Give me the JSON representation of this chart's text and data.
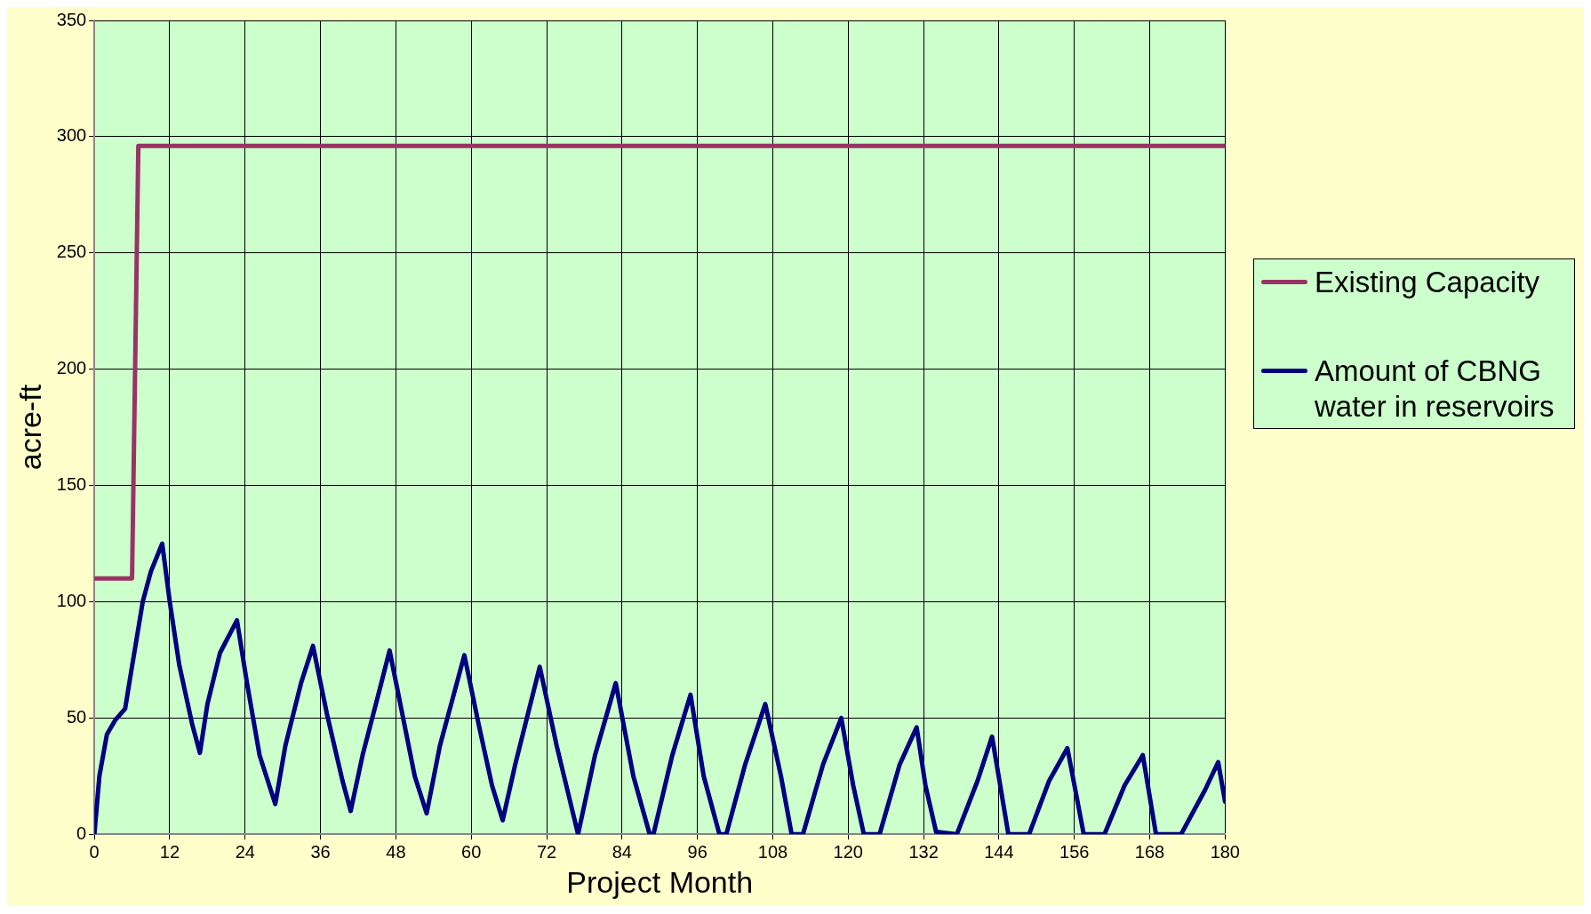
{
  "chart_data": {
    "type": "line",
    "xlabel": "Project Month",
    "ylabel": "acre-ft",
    "xlim": [
      0,
      180
    ],
    "xticks": [
      0,
      12,
      24,
      36,
      48,
      60,
      72,
      84,
      96,
      108,
      120,
      132,
      144,
      156,
      168,
      180
    ],
    "ylim": [
      0,
      350
    ],
    "yticks": [
      0,
      50,
      100,
      150,
      200,
      250,
      300,
      350
    ],
    "grid": true,
    "legend": "right",
    "marker": "none",
    "line_style": "solid",
    "series": [
      {
        "name": "Existing Capacity",
        "color": "#993366",
        "x": [
          0,
          6,
          7,
          180
        ],
        "values": [
          110,
          110,
          296,
          296
        ]
      },
      {
        "name": "Amount of CBNG water in reservoirs",
        "color": "#000080",
        "x": [
          0,
          0.8,
          2,
          3.3,
          4.9,
          5.8,
          6.6,
          7.7,
          9,
          10.8,
          12,
          13.5,
          15.6,
          16.8,
          18,
          20,
          22.7,
          24.3,
          26.3,
          28.8,
          30.4,
          32.9,
          34.8,
          37,
          39.5,
          40.8,
          42.7,
          45.2,
          47,
          49,
          51,
          52.9,
          55,
          58.9,
          61.2,
          63.3,
          65,
          67,
          70.9,
          73.6,
          77,
          79.7,
          83,
          85.8,
          88.4,
          89,
          92,
          94.9,
          97,
          99.5,
          100.6,
          103.6,
          106.8,
          109.3,
          111,
          112.8,
          116,
          118.9,
          120.8,
          122.5,
          125,
          128.2,
          130.9,
          132.3,
          134,
          137.3,
          140.6,
          142.9,
          145.5,
          148.8,
          152,
          154.9,
          157.5,
          160.8,
          164,
          166.9,
          169,
          173,
          176.8,
          178.9,
          180
        ],
        "values": [
          0,
          25,
          43,
          49,
          54,
          69,
          82,
          100,
          113,
          125,
          100,
          73,
          47,
          35,
          56,
          78,
          92,
          65,
          34,
          13,
          38,
          65,
          81,
          52,
          23,
          10,
          34,
          60,
          79,
          52,
          25,
          9,
          38,
          77,
          47,
          21,
          6,
          30,
          72,
          38,
          0,
          34,
          65,
          25,
          0,
          0,
          34,
          60,
          25,
          0,
          0,
          30,
          56,
          25,
          0,
          0,
          30,
          50,
          21,
          0,
          0,
          30,
          46,
          21,
          1,
          0,
          23,
          42,
          0,
          0,
          23,
          37,
          0,
          0,
          21,
          34,
          0,
          0,
          19,
          31,
          14
        ]
      }
    ]
  }
}
